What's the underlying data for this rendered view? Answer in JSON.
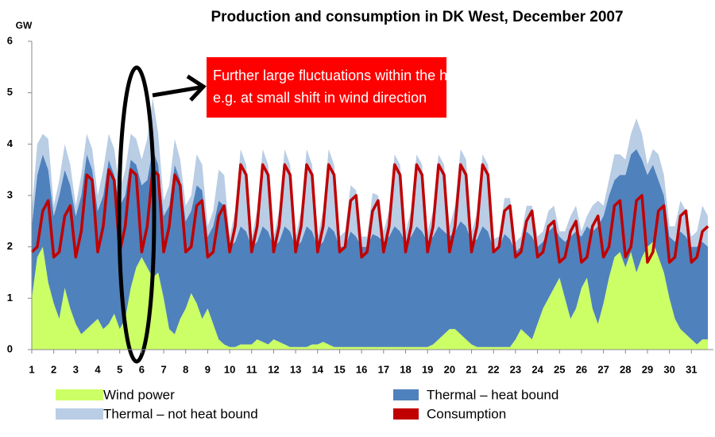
{
  "chart_data": {
    "type": "stacked_area_line",
    "title": "Production and consumption in DK West, December 2007",
    "ylabel": "GW",
    "annotation": [
      "Further large fluctuations within the hour",
      "e.g. at small shift in wind direction"
    ],
    "xlim": [
      1,
      32
    ],
    "xticks": [
      1,
      2,
      3,
      4,
      5,
      6,
      7,
      8,
      9,
      10,
      11,
      12,
      13,
      14,
      15,
      16,
      17,
      18,
      19,
      20,
      21,
      22,
      23,
      24,
      25,
      26,
      27,
      28,
      29,
      30,
      31
    ],
    "ylim": [
      0,
      6
    ],
    "yticks": [
      0,
      1,
      2,
      3,
      4,
      5,
      6
    ],
    "x": [
      1,
      1.25,
      1.5,
      1.75,
      2,
      2.25,
      2.5,
      2.75,
      3,
      3.25,
      3.5,
      3.75,
      4,
      4.25,
      4.5,
      4.75,
      5,
      5.25,
      5.5,
      5.75,
      6,
      6.25,
      6.5,
      6.75,
      7,
      7.25,
      7.5,
      7.75,
      8,
      8.25,
      8.5,
      8.75,
      9,
      9.25,
      9.5,
      9.75,
      10,
      10.25,
      10.5,
      10.75,
      11,
      11.25,
      11.5,
      11.75,
      12,
      12.25,
      12.5,
      12.75,
      13,
      13.25,
      13.5,
      13.75,
      14,
      14.25,
      14.5,
      14.75,
      15,
      15.25,
      15.5,
      15.75,
      16,
      16.25,
      16.5,
      16.75,
      17,
      17.25,
      17.5,
      17.75,
      18,
      18.25,
      18.5,
      18.75,
      19,
      19.25,
      19.5,
      19.75,
      20,
      20.25,
      20.5,
      20.75,
      21,
      21.25,
      21.5,
      21.75,
      22,
      22.25,
      22.5,
      22.75,
      23,
      23.25,
      23.5,
      23.75,
      24,
      24.25,
      24.5,
      24.75,
      25,
      25.25,
      25.5,
      25.75,
      26,
      26.25,
      26.5,
      26.75,
      27,
      27.25,
      27.5,
      27.75,
      28,
      28.25,
      28.5,
      28.75,
      29,
      29.25,
      29.5,
      29.75,
      30,
      30.25,
      30.5,
      30.75,
      31,
      31.25,
      31.5,
      31.75
    ],
    "series": [
      {
        "name": "Wind power",
        "color": "#ccff66",
        "kind": "area",
        "values": [
          1.0,
          1.8,
          2.0,
          1.3,
          0.9,
          0.6,
          1.2,
          0.8,
          0.5,
          0.3,
          0.4,
          0.5,
          0.6,
          0.4,
          0.5,
          0.7,
          0.4,
          0.6,
          1.2,
          1.6,
          1.8,
          1.6,
          1.4,
          1.5,
          1.0,
          0.4,
          0.3,
          0.6,
          0.8,
          1.1,
          0.9,
          0.6,
          0.8,
          0.5,
          0.2,
          0.1,
          0.05,
          0.05,
          0.1,
          0.1,
          0.1,
          0.2,
          0.15,
          0.1,
          0.2,
          0.15,
          0.1,
          0.05,
          0.05,
          0.05,
          0.05,
          0.1,
          0.1,
          0.15,
          0.1,
          0.05,
          0.05,
          0.05,
          0.05,
          0.05,
          0.05,
          0.05,
          0.05,
          0.05,
          0.05,
          0.05,
          0.05,
          0.05,
          0.05,
          0.05,
          0.05,
          0.05,
          0.05,
          0.1,
          0.2,
          0.3,
          0.4,
          0.4,
          0.3,
          0.2,
          0.1,
          0.05,
          0.05,
          0.05,
          0.05,
          0.05,
          0.05,
          0.05,
          0.2,
          0.4,
          0.3,
          0.2,
          0.5,
          0.8,
          1.0,
          1.2,
          1.4,
          1.0,
          0.6,
          0.8,
          1.2,
          1.4,
          0.8,
          0.5,
          0.9,
          1.4,
          1.8,
          1.9,
          1.6,
          1.9,
          1.5,
          1.8,
          2.0,
          2.1,
          1.8,
          1.5,
          1.0,
          0.6,
          0.4,
          0.3,
          0.2,
          0.1,
          0.2,
          0.2
        ]
      },
      {
        "name": "Thermal – heat bound",
        "color": "#4f81bd",
        "kind": "area",
        "values": [
          1.4,
          1.6,
          1.8,
          2.2,
          1.7,
          2.4,
          2.3,
          2.4,
          2.1,
          2.7,
          3.4,
          3.0,
          2.1,
          2.6,
          3.2,
          2.7,
          2.4,
          2.4,
          2.5,
          2.0,
          1.4,
          1.7,
          2.5,
          2.1,
          1.6,
          2.4,
          3.3,
          2.7,
          1.7,
          1.6,
          2.3,
          2.5,
          1.4,
          1.9,
          2.7,
          2.7,
          1.95,
          2.05,
          2.3,
          2.2,
          1.9,
          1.9,
          2.25,
          2.2,
          1.8,
          1.95,
          2.3,
          2.25,
          1.95,
          2.05,
          2.35,
          2.2,
          1.9,
          1.95,
          2.3,
          2.25,
          1.95,
          1.95,
          2.25,
          2.15,
          1.95,
          1.95,
          2.2,
          2.15,
          2.05,
          2.15,
          2.35,
          2.25,
          2.05,
          2.15,
          2.35,
          2.25,
          2.05,
          2.1,
          2.2,
          2.0,
          1.8,
          1.9,
          2.2,
          2.2,
          2.0,
          2.1,
          2.35,
          2.25,
          1.9,
          1.95,
          2.2,
          2.1,
          1.7,
          1.6,
          2.0,
          2.0,
          1.5,
          1.3,
          1.3,
          1.2,
          0.8,
          1.1,
          1.6,
          1.5,
          1.0,
          1.0,
          1.5,
          1.9,
          1.7,
          1.6,
          1.5,
          1.5,
          1.8,
          1.9,
          2.4,
          1.9,
          1.4,
          1.5,
          1.5,
          1.5,
          1.2,
          1.5,
          1.9,
          1.9,
          1.8,
          1.9,
          1.9,
          1.8
        ]
      },
      {
        "name": "Thermal – not heat bound",
        "color": "#b9cde5",
        "kind": "area",
        "values": [
          0.3,
          0.6,
          0.4,
          0.6,
          0.2,
          0.3,
          0.5,
          0.4,
          0.2,
          0.4,
          0.4,
          0.4,
          0.3,
          0.5,
          0.5,
          0.5,
          0.3,
          0.5,
          0.5,
          0.5,
          0.5,
          0.8,
          1.0,
          0.6,
          0.3,
          0.4,
          0.5,
          0.4,
          0.3,
          0.3,
          0.6,
          0.5,
          0.2,
          0.3,
          0.6,
          0.6,
          0.2,
          0.6,
          1.5,
          1.3,
          0.2,
          0.6,
          1.5,
          1.3,
          0.2,
          0.6,
          1.5,
          1.3,
          0.2,
          0.6,
          1.5,
          1.3,
          0.2,
          0.6,
          1.5,
          1.3,
          0.2,
          0.3,
          0.9,
          0.9,
          0.2,
          0.2,
          0.8,
          0.8,
          0.2,
          0.5,
          1.4,
          1.3,
          0.2,
          0.5,
          1.4,
          1.3,
          0.2,
          0.5,
          1.4,
          1.3,
          0.2,
          0.5,
          1.4,
          1.3,
          0.2,
          0.5,
          1.4,
          1.3,
          0.2,
          0.2,
          0.7,
          0.8,
          0.2,
          0.2,
          0.5,
          0.6,
          0.2,
          0.2,
          0.4,
          0.4,
          0.1,
          0.2,
          0.4,
          0.5,
          0.1,
          0.2,
          0.5,
          0.5,
          0.2,
          0.3,
          0.5,
          0.4,
          0.3,
          0.4,
          0.6,
          0.5,
          0.2,
          0.3,
          0.5,
          0.4,
          0.2,
          0.3,
          0.6,
          0.5,
          0.2,
          0.3,
          0.7,
          0.6
        ]
      },
      {
        "name": "Consumption",
        "color": "#c00000",
        "kind": "line",
        "values": [
          1.9,
          2.0,
          2.7,
          2.9,
          1.8,
          1.9,
          2.6,
          2.8,
          1.8,
          2.3,
          3.4,
          3.3,
          1.9,
          2.4,
          3.5,
          3.3,
          1.9,
          2.4,
          3.5,
          3.4,
          1.9,
          2.4,
          3.5,
          3.4,
          1.9,
          2.4,
          3.4,
          3.2,
          1.9,
          2.0,
          2.8,
          2.9,
          1.8,
          1.9,
          2.6,
          2.8,
          1.9,
          2.4,
          3.6,
          3.4,
          1.9,
          2.4,
          3.6,
          3.4,
          1.9,
          2.4,
          3.6,
          3.4,
          1.9,
          2.4,
          3.6,
          3.4,
          1.9,
          2.4,
          3.6,
          3.4,
          1.9,
          2.0,
          2.9,
          3.0,
          1.8,
          1.9,
          2.7,
          2.9,
          1.9,
          2.4,
          3.6,
          3.4,
          1.9,
          2.4,
          3.6,
          3.4,
          1.9,
          2.4,
          3.6,
          3.4,
          1.9,
          2.4,
          3.6,
          3.4,
          1.9,
          2.4,
          3.6,
          3.4,
          1.9,
          2.0,
          2.7,
          2.8,
          1.8,
          1.9,
          2.5,
          2.7,
          1.8,
          1.9,
          2.4,
          2.5,
          1.7,
          1.8,
          2.3,
          2.5,
          1.7,
          1.8,
          2.4,
          2.6,
          1.8,
          2.0,
          2.8,
          2.9,
          1.8,
          2.0,
          2.9,
          3.0,
          1.7,
          1.9,
          2.7,
          2.8,
          1.7,
          1.8,
          2.6,
          2.7,
          1.7,
          1.8,
          2.3,
          2.4
        ]
      }
    ]
  }
}
